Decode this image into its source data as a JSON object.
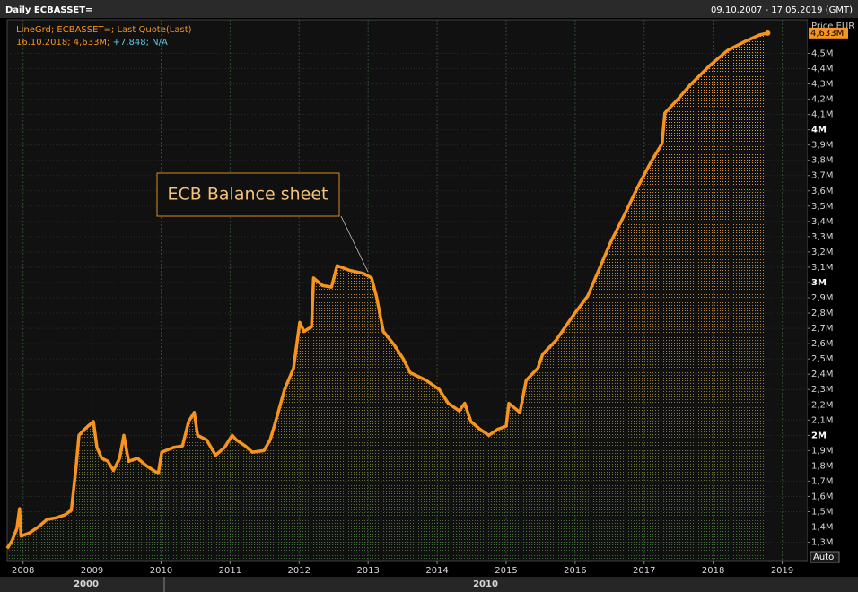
{
  "chart_data": {
    "type": "line",
    "title": "Daily ECBASSET=",
    "date_range": "09.10.2007 - 17.05.2019 (GMT)",
    "legend_line": "LineGrd; ECBASSET=; Last Quote(Last)",
    "info_line": "16.10.2018; 4,633M;",
    "info_change": "+7.848; N/A",
    "annotation": "ECB Balance sheet",
    "y_axis_label": "Price EUR",
    "scale_mode": "Auto",
    "decade_labels": [
      "2000",
      "2010"
    ],
    "last_value": 4.633,
    "last_value_label": "4,633M",
    "grid": true,
    "xlim": [
      2007.77,
      2019.37
    ],
    "xticks": [
      2008,
      2009,
      2010,
      2011,
      2012,
      2013,
      2014,
      2015,
      2016,
      2017,
      2018,
      2019
    ],
    "ylim": [
      1.18,
      4.72
    ],
    "yticks": [
      {
        "value": 1.3,
        "label": "1,3M"
      },
      {
        "value": 1.4,
        "label": "1,4M"
      },
      {
        "value": 1.5,
        "label": "1,5M"
      },
      {
        "value": 1.6,
        "label": "1,6M"
      },
      {
        "value": 1.7,
        "label": "1,7M"
      },
      {
        "value": 1.8,
        "label": "1,8M"
      },
      {
        "value": 1.9,
        "label": "1,9M"
      },
      {
        "value": 2,
        "label": "2M"
      },
      {
        "value": 2.1,
        "label": "2,1M"
      },
      {
        "value": 2.2,
        "label": "2,2M"
      },
      {
        "value": 2.3,
        "label": "2,3M"
      },
      {
        "value": 2.4,
        "label": "2,4M"
      },
      {
        "value": 2.5,
        "label": "2,5M"
      },
      {
        "value": 2.6,
        "label": "2,6M"
      },
      {
        "value": 2.7,
        "label": "2,7M"
      },
      {
        "value": 2.8,
        "label": "2,8M"
      },
      {
        "value": 2.9,
        "label": "2,9M"
      },
      {
        "value": 3,
        "label": "3M"
      },
      {
        "value": 3.1,
        "label": "3,1M"
      },
      {
        "value": 3.2,
        "label": "3,2M"
      },
      {
        "value": 3.3,
        "label": "3,3M"
      },
      {
        "value": 3.4,
        "label": "3,4M"
      },
      {
        "value": 3.5,
        "label": "3,5M"
      },
      {
        "value": 3.6,
        "label": "3,6M"
      },
      {
        "value": 3.7,
        "label": "3,7M"
      },
      {
        "value": 3.8,
        "label": "3,8M"
      },
      {
        "value": 3.9,
        "label": "3,9M"
      },
      {
        "value": 4,
        "label": "4M"
      },
      {
        "value": 4.1,
        "label": "4,1M"
      },
      {
        "value": 4.2,
        "label": "4,2M"
      },
      {
        "value": 4.3,
        "label": "4,3M"
      },
      {
        "value": 4.4,
        "label": "4,4M"
      },
      {
        "value": 4.5,
        "label": "4,5M"
      }
    ],
    "x": [
      2007.77,
      2007.84,
      2007.91,
      2007.95,
      2007.97,
      2008.09,
      2008.22,
      2008.35,
      2008.48,
      2008.61,
      2008.7,
      2008.77,
      2008.81,
      2008.87,
      2008.94,
      2009.02,
      2009.07,
      2009.14,
      2009.23,
      2009.31,
      2009.4,
      2009.46,
      2009.53,
      2009.66,
      2009.79,
      2009.96,
      2010.01,
      2010.18,
      2010.31,
      2010.4,
      2010.48,
      2010.53,
      2010.66,
      2010.79,
      2010.92,
      2011.03,
      2011.09,
      2011.22,
      2011.32,
      2011.49,
      2011.58,
      2011.66,
      2011.79,
      2011.92,
      2012.01,
      2012.07,
      2012.18,
      2012.21,
      2012.34,
      2012.47,
      2012.55,
      2012.73,
      2012.93,
      2013.05,
      2013.12,
      2013.22,
      2013.38,
      2013.51,
      2013.61,
      2013.84,
      2014.03,
      2014.16,
      2014.32,
      2014.4,
      2014.49,
      2014.62,
      2014.75,
      2014.88,
      2015.0,
      2015.04,
      2015.2,
      2015.29,
      2015.46,
      2015.53,
      2015.72,
      2015.98,
      2016.18,
      2016.35,
      2016.51,
      2016.71,
      2016.9,
      2017.1,
      2017.26,
      2017.3,
      2017.49,
      2017.66,
      2017.95,
      2018.21,
      2018.47,
      2018.67,
      2018.79
    ],
    "series": [
      {
        "name": "ECBASSET=",
        "color": "#f7941d",
        "values": [
          1.26,
          1.31,
          1.39,
          1.52,
          1.34,
          1.36,
          1.4,
          1.45,
          1.46,
          1.48,
          1.51,
          1.8,
          2.0,
          2.03,
          2.06,
          2.09,
          1.92,
          1.85,
          1.83,
          1.77,
          1.85,
          2.0,
          1.83,
          1.85,
          1.8,
          1.75,
          1.89,
          1.92,
          1.93,
          2.09,
          2.15,
          2.0,
          1.97,
          1.87,
          1.92,
          2.0,
          1.97,
          1.93,
          1.89,
          1.9,
          1.97,
          2.09,
          2.3,
          2.44,
          2.74,
          2.68,
          2.71,
          3.03,
          2.98,
          2.97,
          3.11,
          3.08,
          3.06,
          3.03,
          2.91,
          2.68,
          2.59,
          2.5,
          2.41,
          2.36,
          2.3,
          2.21,
          2.16,
          2.21,
          2.09,
          2.04,
          2.0,
          2.04,
          2.06,
          2.21,
          2.15,
          2.36,
          2.44,
          2.53,
          2.62,
          2.79,
          2.91,
          3.09,
          3.26,
          3.44,
          3.62,
          3.79,
          3.91,
          4.11,
          4.2,
          4.29,
          4.42,
          4.52,
          4.58,
          4.62,
          4.633
        ]
      }
    ]
  }
}
